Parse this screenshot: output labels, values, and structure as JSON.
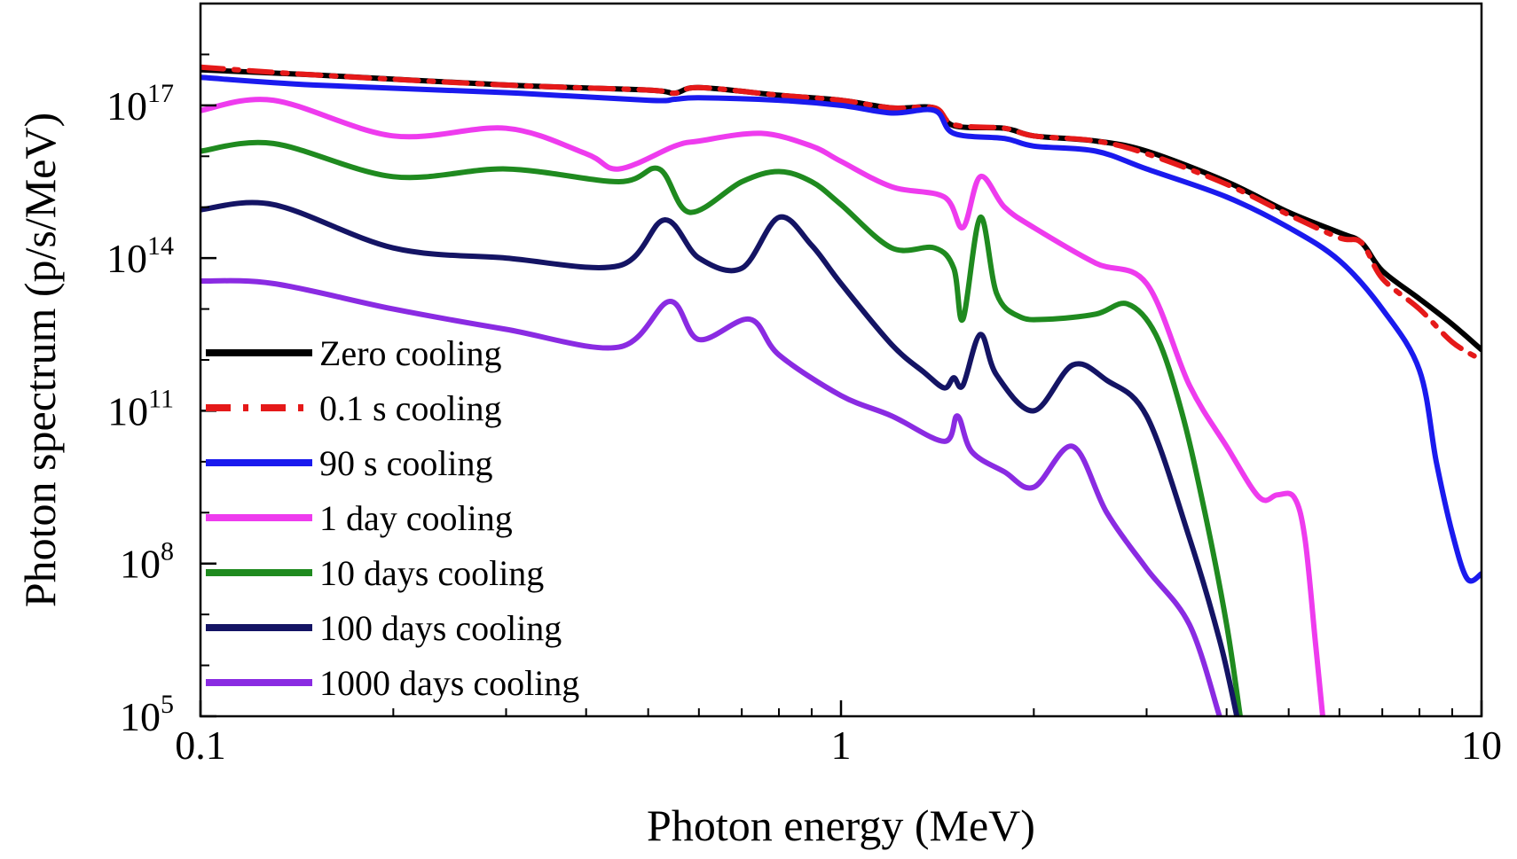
{
  "chart_data": {
    "type": "line",
    "title": "",
    "xlabel": "Photon energy (MeV)",
    "ylabel": "Photon spectrum (p/s/MeV)",
    "xscale": "log",
    "yscale": "log",
    "xlim": [
      0.1,
      10
    ],
    "ylim": [
      100000.0,
      1e+19
    ],
    "xticks": [
      {
        "value": 0.1,
        "label": "0.1"
      },
      {
        "value": 1,
        "label": "1"
      },
      {
        "value": 10,
        "label": "10"
      }
    ],
    "yticks": [
      {
        "value": 100000.0,
        "base": "10",
        "exp": "5"
      },
      {
        "value": 100000000.0,
        "base": "10",
        "exp": "8"
      },
      {
        "value": 100000000000.0,
        "base": "10",
        "exp": "11"
      },
      {
        "value": 100000000000000.0,
        "base": "10",
        "exp": "14"
      },
      {
        "value": 1e+17,
        "base": "10",
        "exp": "17"
      }
    ],
    "legend_position": "left",
    "series": [
      {
        "name": "Zero cooling",
        "color": "#000000",
        "dash": "solid",
        "points": [
          [
            0.1,
            17.7
          ],
          [
            0.15,
            17.6
          ],
          [
            0.3,
            17.4
          ],
          [
            0.5,
            17.3
          ],
          [
            0.55,
            17.24
          ],
          [
            0.6,
            17.35
          ],
          [
            0.8,
            17.2
          ],
          [
            1.0,
            17.1
          ],
          [
            1.2,
            16.95
          ],
          [
            1.4,
            16.95
          ],
          [
            1.5,
            16.6
          ],
          [
            1.8,
            16.55
          ],
          [
            2.0,
            16.4
          ],
          [
            2.5,
            16.3
          ],
          [
            3.0,
            16.1
          ],
          [
            4.0,
            15.5
          ],
          [
            5.0,
            14.9
          ],
          [
            6.0,
            14.5
          ],
          [
            6.5,
            14.3
          ],
          [
            7.0,
            13.75
          ],
          [
            8.0,
            13.2
          ],
          [
            9.0,
            12.7
          ],
          [
            10.0,
            12.2
          ]
        ]
      },
      {
        "name": "0.1 s cooling",
        "color": "#e51919",
        "dash": "dashdot",
        "points": [
          [
            0.1,
            17.75
          ],
          [
            0.15,
            17.6
          ],
          [
            0.3,
            17.4
          ],
          [
            0.5,
            17.3
          ],
          [
            0.55,
            17.24
          ],
          [
            0.6,
            17.35
          ],
          [
            0.8,
            17.2
          ],
          [
            1.0,
            17.1
          ],
          [
            1.2,
            16.95
          ],
          [
            1.4,
            16.95
          ],
          [
            1.5,
            16.62
          ],
          [
            1.8,
            16.55
          ],
          [
            2.0,
            16.4
          ],
          [
            2.5,
            16.3
          ],
          [
            3.0,
            16.05
          ],
          [
            4.0,
            15.45
          ],
          [
            5.0,
            14.85
          ],
          [
            6.0,
            14.4
          ],
          [
            6.5,
            14.3
          ],
          [
            7.0,
            13.6
          ],
          [
            8.0,
            13.0
          ],
          [
            9.0,
            12.35
          ],
          [
            10.0,
            12.0
          ]
        ]
      },
      {
        "name": "90 s cooling",
        "color": "#1a1aee",
        "dash": "solid",
        "points": [
          [
            0.1,
            17.55
          ],
          [
            0.15,
            17.4
          ],
          [
            0.3,
            17.25
          ],
          [
            0.5,
            17.1
          ],
          [
            0.55,
            17.12
          ],
          [
            0.6,
            17.15
          ],
          [
            0.8,
            17.1
          ],
          [
            1.0,
            17.0
          ],
          [
            1.2,
            16.85
          ],
          [
            1.4,
            16.9
          ],
          [
            1.5,
            16.45
          ],
          [
            1.8,
            16.35
          ],
          [
            2.0,
            16.2
          ],
          [
            2.5,
            16.1
          ],
          [
            3.0,
            15.75
          ],
          [
            4.0,
            15.2
          ],
          [
            5.0,
            14.6
          ],
          [
            6.0,
            13.95
          ],
          [
            7.0,
            13.0
          ],
          [
            8.0,
            11.8
          ],
          [
            8.5,
            10.0
          ],
          [
            9.0,
            8.6
          ],
          [
            9.5,
            7.7
          ],
          [
            10.0,
            7.8
          ]
        ]
      },
      {
        "name": "1 day cooling",
        "color": "#ee3bee",
        "dash": "solid",
        "points": [
          [
            0.1,
            16.9
          ],
          [
            0.13,
            17.1
          ],
          [
            0.2,
            16.4
          ],
          [
            0.3,
            16.55
          ],
          [
            0.4,
            16.05
          ],
          [
            0.45,
            15.75
          ],
          [
            0.55,
            16.2
          ],
          [
            0.6,
            16.3
          ],
          [
            0.75,
            16.45
          ],
          [
            0.9,
            16.2
          ],
          [
            1.0,
            15.9
          ],
          [
            1.2,
            15.4
          ],
          [
            1.45,
            15.2
          ],
          [
            1.55,
            14.6
          ],
          [
            1.65,
            15.6
          ],
          [
            1.8,
            15.0
          ],
          [
            2.0,
            14.6
          ],
          [
            2.5,
            13.9
          ],
          [
            3.0,
            13.5
          ],
          [
            3.5,
            11.5
          ],
          [
            4.0,
            10.3
          ],
          [
            4.5,
            9.3
          ],
          [
            4.8,
            9.35
          ],
          [
            5.1,
            9.3
          ],
          [
            5.3,
            8.5
          ],
          [
            5.5,
            6.5
          ],
          [
            5.65,
            5.0
          ]
        ]
      },
      {
        "name": "10 days cooling",
        "color": "#1f8a1f",
        "dash": "solid",
        "points": [
          [
            0.1,
            16.1
          ],
          [
            0.13,
            16.25
          ],
          [
            0.2,
            15.6
          ],
          [
            0.3,
            15.75
          ],
          [
            0.45,
            15.5
          ],
          [
            0.52,
            15.75
          ],
          [
            0.58,
            14.9
          ],
          [
            0.7,
            15.5
          ],
          [
            0.8,
            15.7
          ],
          [
            0.9,
            15.5
          ],
          [
            1.0,
            15.05
          ],
          [
            1.2,
            14.2
          ],
          [
            1.4,
            14.2
          ],
          [
            1.5,
            13.8
          ],
          [
            1.55,
            12.8
          ],
          [
            1.65,
            14.8
          ],
          [
            1.75,
            13.3
          ],
          [
            1.9,
            12.85
          ],
          [
            2.1,
            12.8
          ],
          [
            2.5,
            12.9
          ],
          [
            2.8,
            13.1
          ],
          [
            3.1,
            12.5
          ],
          [
            3.4,
            11.0
          ],
          [
            3.7,
            9.0
          ],
          [
            4.0,
            6.8
          ],
          [
            4.2,
            5.0
          ]
        ]
      },
      {
        "name": "100 days cooling",
        "color": "#141464",
        "dash": "solid",
        "points": [
          [
            0.1,
            14.95
          ],
          [
            0.13,
            15.05
          ],
          [
            0.2,
            14.2
          ],
          [
            0.3,
            14.0
          ],
          [
            0.45,
            13.85
          ],
          [
            0.53,
            14.75
          ],
          [
            0.6,
            14.0
          ],
          [
            0.7,
            13.8
          ],
          [
            0.8,
            14.8
          ],
          [
            0.9,
            14.25
          ],
          [
            1.0,
            13.5
          ],
          [
            1.2,
            12.3
          ],
          [
            1.35,
            11.75
          ],
          [
            1.45,
            11.45
          ],
          [
            1.5,
            11.65
          ],
          [
            1.55,
            11.5
          ],
          [
            1.65,
            12.5
          ],
          [
            1.75,
            11.7
          ],
          [
            2.0,
            11.0
          ],
          [
            2.3,
            11.9
          ],
          [
            2.6,
            11.6
          ],
          [
            3.0,
            10.9
          ],
          [
            3.5,
            8.5
          ],
          [
            3.9,
            6.5
          ],
          [
            4.15,
            5.0
          ]
        ]
      },
      {
        "name": "1000 days cooling",
        "color": "#8a2be2",
        "dash": "solid",
        "points": [
          [
            0.1,
            13.55
          ],
          [
            0.13,
            13.5
          ],
          [
            0.2,
            13.0
          ],
          [
            0.3,
            12.6
          ],
          [
            0.45,
            12.25
          ],
          [
            0.54,
            13.15
          ],
          [
            0.6,
            12.4
          ],
          [
            0.72,
            12.8
          ],
          [
            0.8,
            12.1
          ],
          [
            1.0,
            11.3
          ],
          [
            1.2,
            10.9
          ],
          [
            1.45,
            10.4
          ],
          [
            1.52,
            10.9
          ],
          [
            1.6,
            10.2
          ],
          [
            1.8,
            9.8
          ],
          [
            2.0,
            9.5
          ],
          [
            2.3,
            10.3
          ],
          [
            2.6,
            9.0
          ],
          [
            3.0,
            7.9
          ],
          [
            3.5,
            6.8
          ],
          [
            3.9,
            5.0
          ]
        ]
      }
    ]
  }
}
